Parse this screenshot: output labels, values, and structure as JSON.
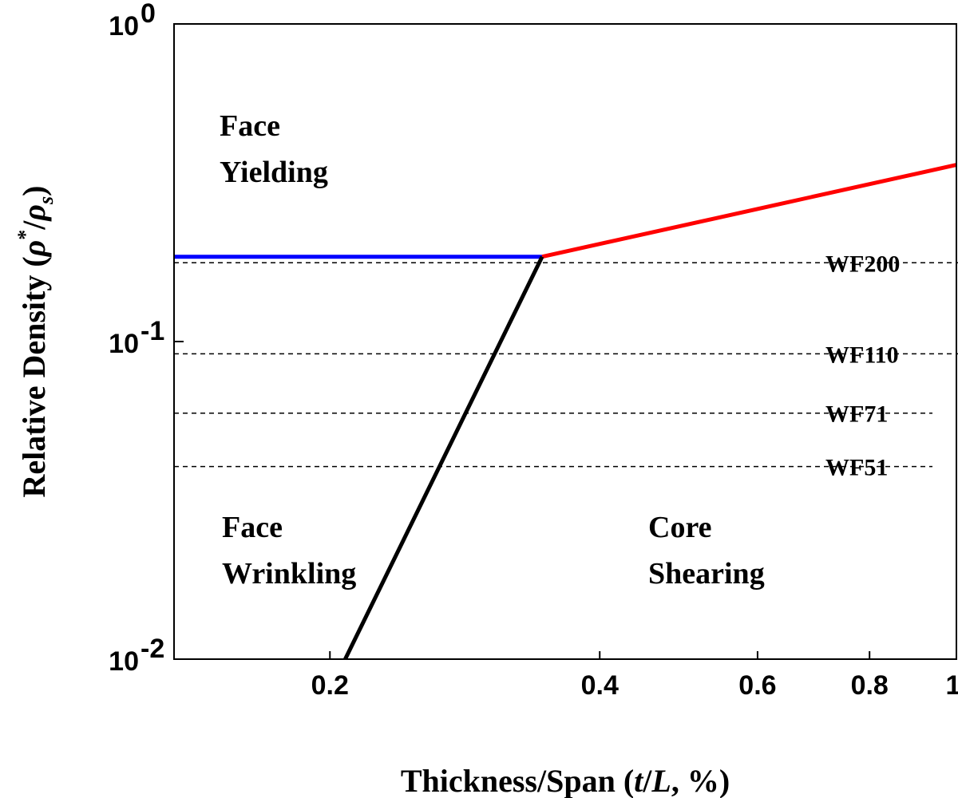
{
  "chart_data": {
    "type": "line",
    "xscale": "log",
    "yscale": "log",
    "xlim": [
      0.134,
      1
    ],
    "ylim": [
      0.01,
      1
    ],
    "grid": false,
    "xlabel": "Thickness/Span (t/L, %)",
    "ylabel": "Relative Density (ρ*/ρs)",
    "x_ticks": [
      {
        "value": 0.2,
        "label": "0.2"
      },
      {
        "value": 0.4,
        "label": "0.4"
      },
      {
        "value": 0.6,
        "label": "0.6"
      },
      {
        "value": 0.8,
        "label": "0.8"
      },
      {
        "value": 1,
        "label": "1"
      }
    ],
    "y_ticks": [
      {
        "value": 1,
        "base": "10",
        "exp": "0"
      },
      {
        "value": 0.1,
        "base": "10",
        "exp": "-1"
      },
      {
        "value": 0.01,
        "base": "10",
        "exp": "-2"
      }
    ],
    "series": [
      {
        "color": "#0000ff",
        "x": [
          0.134,
          0.345
        ],
        "y": [
          0.185,
          0.185
        ]
      },
      {
        "color": "#ff0000",
        "x": [
          0.345,
          1.0
        ],
        "y": [
          0.185,
          0.36
        ]
      },
      {
        "color": "#000000",
        "x": [
          0.208,
          0.345
        ],
        "y": [
          0.01,
          0.185
        ]
      }
    ],
    "reference_lines": [
      {
        "label": "WF200",
        "y": 0.177,
        "x_start": 0.134,
        "x_end": 0.67
      },
      {
        "label": "WF110",
        "y": 0.0915,
        "x_start": 0.134,
        "x_end": 0.67
      },
      {
        "label": "WF71",
        "y": 0.0595,
        "x_start": 0.134,
        "x_end": 1.0
      },
      {
        "label": "WF51",
        "y": 0.0404,
        "x_start": 0.134,
        "x_end": 1.0
      }
    ],
    "regions": [
      {
        "line1": "Face",
        "line2": "Yielding"
      },
      {
        "line1": "Face",
        "line2": "Wrinkling"
      },
      {
        "line1": "Core",
        "line2": "Shearing"
      }
    ]
  }
}
